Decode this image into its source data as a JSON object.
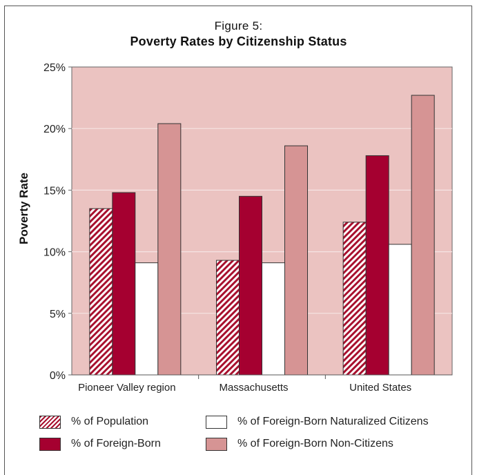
{
  "title": {
    "line1": "Figure 5:",
    "line2": "Poverty Rates by Citizenship Status"
  },
  "chart_data": {
    "type": "bar",
    "ylabel": "Poverty Rate",
    "xlabel": "",
    "ylim": [
      0,
      25
    ],
    "yticks": [
      "0%",
      "5%",
      "10%",
      "15%",
      "20%",
      "25%"
    ],
    "grid": true,
    "legend_position": "bottom",
    "categories": [
      "Pioneer Valley region",
      "Massachusetts",
      "United States"
    ],
    "series": [
      {
        "name": "% of Population",
        "values": [
          13.5,
          9.3,
          12.4
        ],
        "color": "#a8102e",
        "pattern": "hatched"
      },
      {
        "name": "% of Foreign-Born",
        "values": [
          14.8,
          14.5,
          17.8
        ],
        "color": "#a50030"
      },
      {
        "name": "% of Foreign-Born Naturalized Citizens",
        "values": [
          9.1,
          9.1,
          10.6
        ],
        "color": "#ffffff"
      },
      {
        "name": "% of Foreign-Born Non-Citizens",
        "values": [
          20.4,
          18.6,
          22.7
        ],
        "color": "#d69494"
      }
    ],
    "plot_background": "#ebc3c1"
  }
}
